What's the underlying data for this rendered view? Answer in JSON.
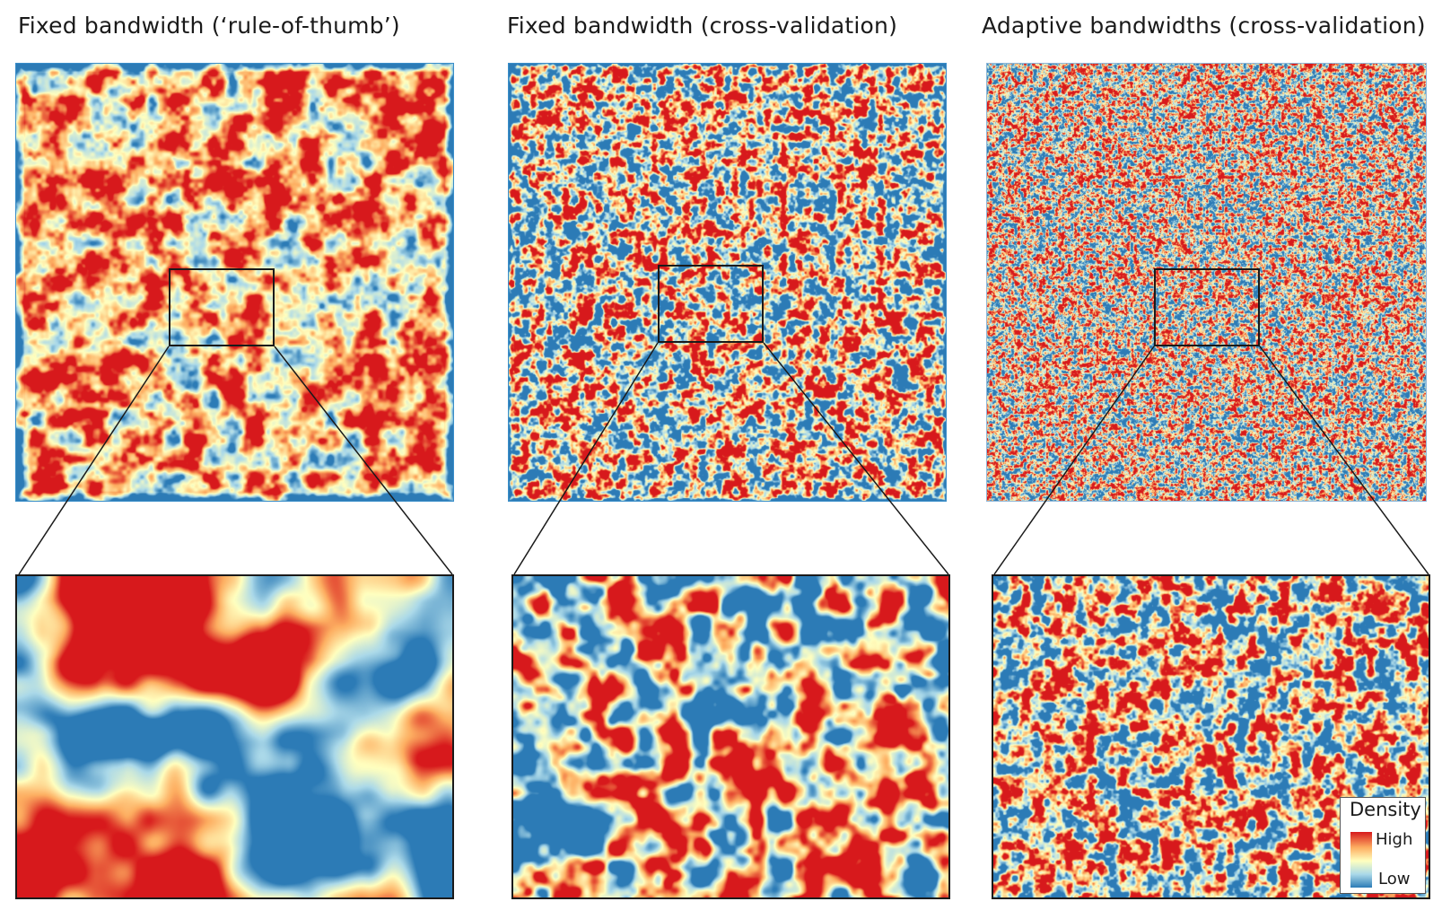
{
  "panels": [
    {
      "title": "Fixed bandwidth (‘rule-of-thumb’)"
    },
    {
      "title": "Fixed bandwidth (cross-validation)"
    },
    {
      "title": "Adaptive bandwidths (cross-validation)"
    }
  ],
  "legend": {
    "title": "Density",
    "high": "High",
    "low": "Low"
  },
  "colors": {
    "high": "#d7191c",
    "mid_high": "#fdae61",
    "mid": "#ffffbf",
    "mid_low": "#abd9e9",
    "low": "#2c7bb6",
    "outline": "#1a1a1a"
  }
}
